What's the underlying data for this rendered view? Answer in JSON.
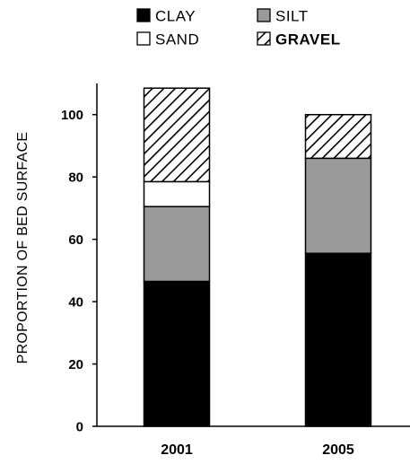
{
  "chart_data": {
    "type": "bar",
    "stacked": true,
    "categories": [
      "2001",
      "2005"
    ],
    "series": [
      {
        "name": "CLAY",
        "values": [
          46.5,
          55.5
        ],
        "fill": "#000000",
        "pattern": "solid"
      },
      {
        "name": "SILT",
        "values": [
          24,
          30.5
        ],
        "fill": "#9a9a9a",
        "pattern": "solid"
      },
      {
        "name": "SAND",
        "values": [
          8,
          0
        ],
        "fill": "#ffffff",
        "pattern": "solid"
      },
      {
        "name": "GRAVEL",
        "values": [
          30,
          14
        ],
        "fill": "#ffffff",
        "pattern": "hatch"
      }
    ],
    "xlabel": "",
    "ylabel": "PROPORTION OF BED SURFACE",
    "ylim": [
      0,
      110
    ],
    "yticks": [
      "0",
      "20",
      "40",
      "60",
      "80",
      "100"
    ],
    "grid": false,
    "legend_position": "top"
  }
}
